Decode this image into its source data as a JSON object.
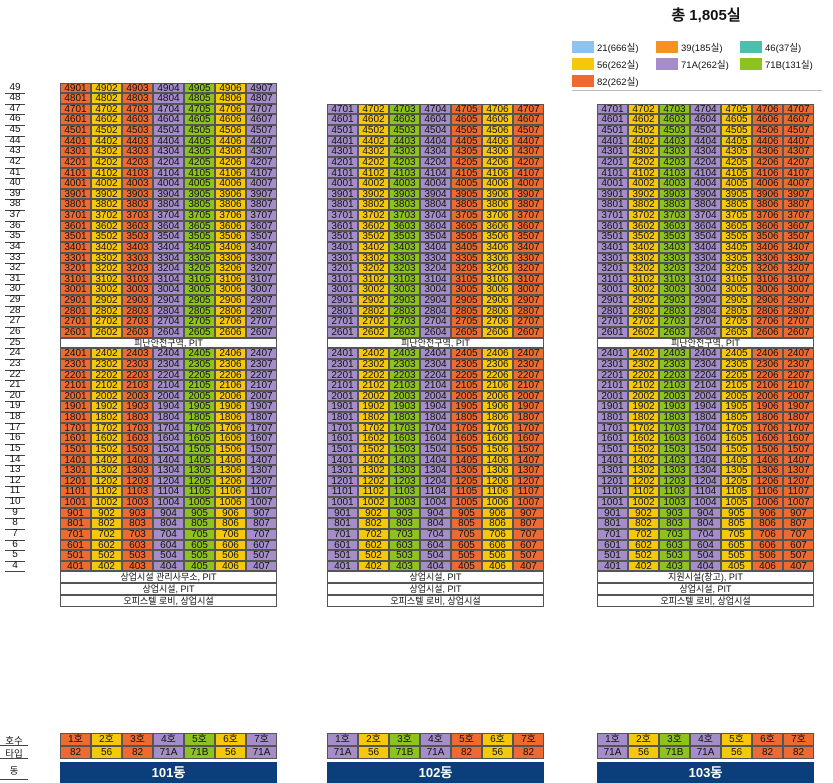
{
  "total_label": "총 1,805실",
  "legend": [
    {
      "type": "21",
      "label": "21(666실)",
      "color": "#8fc3ec"
    },
    {
      "type": "39",
      "label": "39(185실)",
      "color": "#f6921e"
    },
    {
      "type": "46",
      "label": "46(37실)",
      "color": "#4fbfad"
    },
    {
      "type": "56",
      "label": "56(262실)",
      "color": "#f6c80a"
    },
    {
      "type": "71A",
      "label": "71A(262실)",
      "color": "#a48dc8"
    },
    {
      "type": "71B",
      "label": "71B(131실)",
      "color": "#8dc21f"
    },
    {
      "type": "82",
      "label": "82(262실)",
      "color": "#ee6a31"
    }
  ],
  "colors": {
    "82": "#ee6a31",
    "56": "#f6c80a",
    "71A": "#a48dc8",
    "71B": "#8dc21f"
  },
  "row_labels": {
    "unit": "호수",
    "type": "타입",
    "building": "동"
  },
  "floor_labels": [
    "49",
    "48",
    "47",
    "46",
    "45",
    "44",
    "43",
    "42",
    "41",
    "40",
    "39",
    "38",
    "37",
    "36",
    "35",
    "34",
    "33",
    "32",
    "31",
    "30",
    "29",
    "28",
    "27",
    "26",
    "25",
    "24",
    "23",
    "22",
    "21",
    "20",
    "19",
    "18",
    "17",
    "16",
    "15",
    "14",
    "13",
    "12",
    "11",
    "10",
    "9",
    "8",
    "7",
    "6",
    "5",
    "4"
  ],
  "buildings": [
    {
      "name": "101동",
      "top_floor": 49,
      "refuge_label": "피난안전구역, PIT",
      "bottom_bands": [
        "상업시설 관리사무소, PIT",
        "상업시설, PIT",
        "오피스텔 로비, 상업시설"
      ],
      "units": [
        "1호",
        "2호",
        "3호",
        "4호",
        "5호",
        "6호",
        "7호"
      ],
      "types": [
        "82",
        "56",
        "82",
        "71A",
        "71B",
        "56",
        "71A"
      ]
    },
    {
      "name": "102동",
      "top_floor": 47,
      "refuge_label": "피난안전구역, PIT",
      "bottom_bands": [
        "상업시설, PIT",
        "상업시설, PIT",
        "오피스텔 로비, 상업시설"
      ],
      "units": [
        "1호",
        "2호",
        "3호",
        "4호",
        "5호",
        "6호",
        "7호"
      ],
      "types": [
        "71A",
        "56",
        "71B",
        "71A",
        "82",
        "56",
        "82"
      ]
    },
    {
      "name": "103동",
      "top_floor": 47,
      "refuge_label": "피난안전구역, PIT",
      "bottom_bands": [
        "지원시설(창고), PIT",
        "상업시설, PIT",
        "오피스텔 로비, 상업시설"
      ],
      "units": [
        "1호",
        "2호",
        "3호",
        "4호",
        "5호",
        "6호",
        "7호"
      ],
      "types": [
        "71A",
        "56",
        "71B",
        "71A",
        "56",
        "82",
        "82"
      ]
    }
  ]
}
